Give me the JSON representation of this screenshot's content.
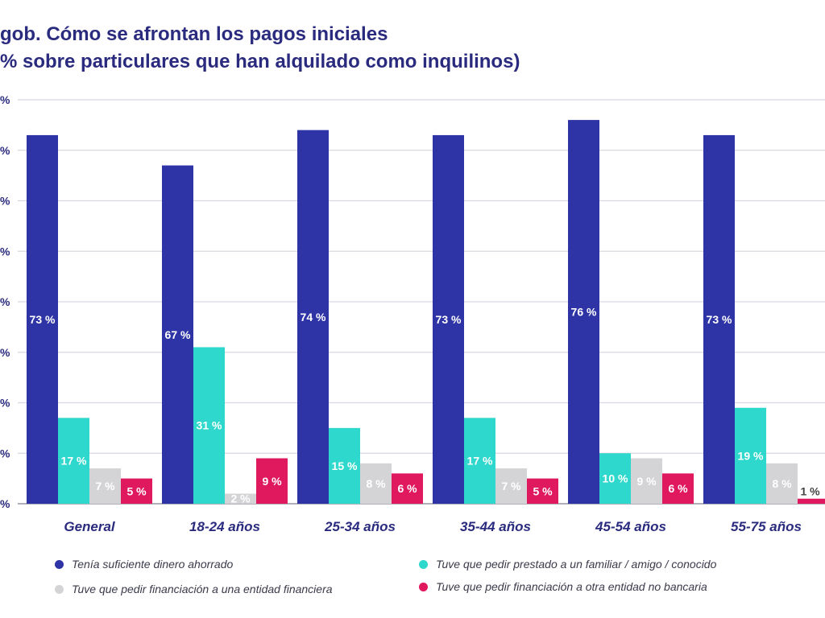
{
  "title_lines": [
    "gob. Cómo se afrontan los pagos iniciales",
    "% sobre particulares que han alquilado como inquilinos)"
  ],
  "chart_data": {
    "type": "bar",
    "title": "gob. Cómo se afrontan los pagos iniciales (% sobre particulares que han alquilado como inquilinos)",
    "categories": [
      "General",
      "18-24 años",
      "25-34 años",
      "35-44 años",
      "45-54 años",
      "55-75 años"
    ],
    "series": [
      {
        "name": "Tenía suficiente dinero ahorrado",
        "color": "#2e33a6",
        "values": [
          73,
          67,
          74,
          73,
          76,
          73
        ],
        "labels": [
          "73 %",
          "67 %",
          "74 %",
          "73 %",
          "76 %",
          "73 %"
        ]
      },
      {
        "name": "Tuve que pedir prestado a un familiar / amigo / conocido",
        "color": "#2fd8cc",
        "values": [
          17,
          31,
          15,
          17,
          10,
          19
        ],
        "labels": [
          "17 %",
          "31 %",
          "15 %",
          "17 %",
          "10 %",
          "19 %"
        ]
      },
      {
        "name": "Tuve que pedir financiación a una entidad financiera",
        "color": "#d4d4d6",
        "values": [
          7,
          2,
          8,
          7,
          9,
          8
        ],
        "labels": [
          "7 %",
          "2 %",
          "8 %",
          "7 %",
          "9 %",
          "8 %"
        ]
      },
      {
        "name": "Tuve que pedir financiación a otra entidad no bancaria",
        "color": "#e0195f",
        "values": [
          5,
          9,
          6,
          5,
          6,
          1
        ],
        "labels": [
          "5 %",
          "9 %",
          "6 %",
          "5 %",
          "6 %",
          "1 %"
        ]
      }
    ],
    "yticks": [
      "%",
      "%",
      "%",
      "%",
      "%",
      "%",
      "%",
      "%",
      "%"
    ],
    "ylim": [
      0,
      80
    ],
    "grid": true,
    "legend_position": "bottom"
  }
}
